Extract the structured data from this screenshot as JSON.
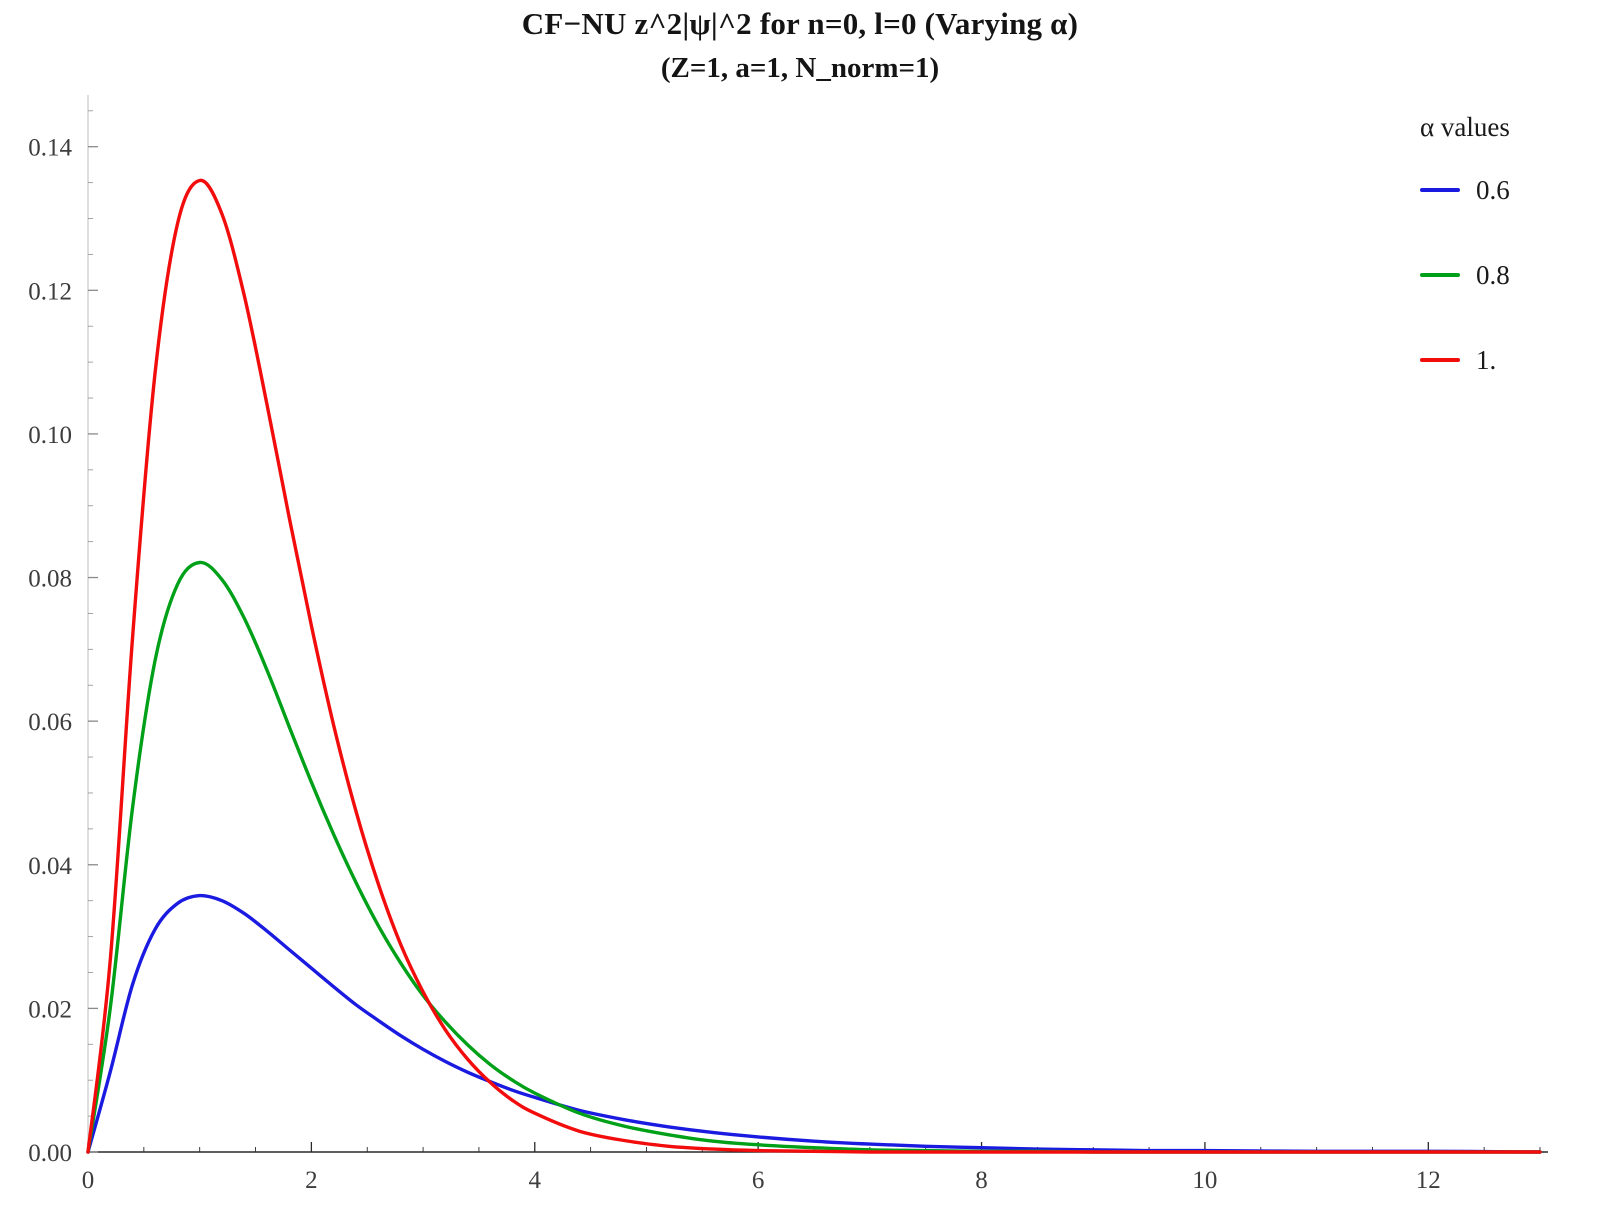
{
  "title": "CF−NU z^2|ψ|^2 for n=0, l=0 (Varying α)",
  "subtitle": "(Z=1, a=1, N_norm=1)",
  "legend": {
    "header": "α values",
    "position": "top-right",
    "items": [
      {
        "label": "0.6",
        "color": "#1a1ae0"
      },
      {
        "label": "0.8",
        "color": "#00a018"
      },
      {
        "label": "1.",
        "color": "#f20c0c"
      }
    ]
  },
  "colors": {
    "axis": "#2a2a2a",
    "y_axis_line": "#cccccc",
    "tick_label": "#3d3d3d",
    "background": "#ffffff"
  },
  "chart_data": {
    "type": "line",
    "title": "CF−NU z^2|ψ|^2 for n=0, l=0 (Varying α)",
    "subtitle": "(Z=1, a=1, N_norm=1)",
    "xlabel": "",
    "ylabel": "",
    "xlim": [
      0,
      13
    ],
    "ylim": [
      0,
      0.1472
    ],
    "grid": false,
    "legend_position": "top-right",
    "xticks": {
      "values": [
        0,
        2,
        4,
        6,
        8,
        10,
        12
      ],
      "labels": [
        "0",
        "2",
        "4",
        "6",
        "8",
        "10",
        "12"
      ]
    },
    "yticks": {
      "values": [
        0,
        0.02,
        0.04,
        0.06,
        0.08,
        0.1,
        0.12,
        0.14
      ],
      "labels": [
        "0.00",
        "0.02",
        "0.04",
        "0.06",
        "0.08",
        "0.10",
        "0.12",
        "0.14"
      ]
    },
    "x_minor_step": 0.5,
    "y_minor_step": 0.005,
    "x": [
      0,
      0.2,
      0.4,
      0.6,
      0.8,
      1,
      1.2,
      1.4,
      1.6,
      1.8,
      2,
      2.2,
      2.4,
      2.6,
      2.8,
      3,
      3.2,
      3.4,
      3.6,
      3.8,
      4,
      4.4,
      4.8,
      5.2,
      5.6,
      6,
      6.5,
      7,
      7.5,
      8,
      8.5,
      9,
      9.5,
      10,
      11,
      12,
      13
    ],
    "series": [
      {
        "name": "0.6",
        "color": "#1a1ae0",
        "peak": {
          "x": 1.0,
          "y": 0.0357
        },
        "values": [
          0,
          0.0112,
          0.0234,
          0.031,
          0.0346,
          0.0357,
          0.035,
          0.0332,
          0.0308,
          0.0282,
          0.0256,
          0.023,
          0.0205,
          0.0183,
          0.0162,
          0.0143,
          0.0126,
          0.0111,
          0.0098,
          0.0086,
          0.0076,
          0.0058,
          0.0045,
          0.0035,
          0.0027,
          0.0021,
          0.0015,
          0.0011,
          0.0008,
          0.0006,
          0.0004,
          0.0003,
          0.0002,
          0.0002,
          0.0001,
          0.0001,
          0
        ]
      },
      {
        "name": "0.8",
        "color": "#00a018",
        "peak": {
          "x": 1.0,
          "y": 0.0821
        },
        "values": [
          0,
          0.0201,
          0.0481,
          0.0684,
          0.079,
          0.0821,
          0.0797,
          0.0743,
          0.0672,
          0.0593,
          0.0515,
          0.0442,
          0.0375,
          0.0315,
          0.0263,
          0.0218,
          0.0181,
          0.0149,
          0.0122,
          0.01,
          0.0082,
          0.0054,
          0.0036,
          0.0024,
          0.0015,
          0.001,
          0.0006,
          0.0003,
          0.0002,
          0.0001,
          0.0001,
          0,
          0,
          0,
          0,
          0,
          0
        ]
      },
      {
        "name": "1.",
        "color": "#f20c0c",
        "peak": {
          "x": 1.0,
          "y": 0.1353
        },
        "values": [
          0,
          0.0268,
          0.0719,
          0.1084,
          0.1292,
          0.1353,
          0.1306,
          0.1192,
          0.1043,
          0.0885,
          0.0733,
          0.0594,
          0.0474,
          0.0373,
          0.0289,
          0.0223,
          0.017,
          0.0129,
          0.0097,
          0.0072,
          0.0054,
          0.0029,
          0.0016,
          0.0008,
          0.0004,
          0.0002,
          0.0001,
          0,
          0,
          0,
          0,
          0,
          0,
          0,
          0,
          0,
          0
        ]
      }
    ]
  }
}
